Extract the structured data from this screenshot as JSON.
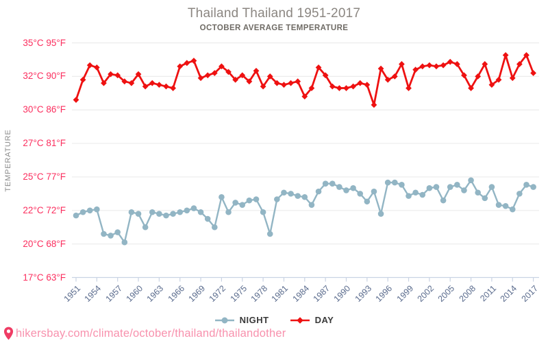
{
  "title": "Thailand Thailand 1951-2017",
  "subtitle": "OCTOBER AVERAGE TEMPERATURE",
  "y_axis_label": "TEMPERATURE",
  "legend": {
    "night_label": "NIGHT",
    "day_label": "DAY"
  },
  "footer": {
    "url": "hikersbay.com/climate/october/thailand/thailandother"
  },
  "colors": {
    "day": "#ee1111",
    "night": "#92b5c4",
    "axis_label_pink": "#fb2e5e",
    "year_label": "#5a6b8d",
    "grid": "#ececec",
    "axis_line": "#c9d3e3",
    "title": "#8b8681",
    "subtitle": "#6e6a64",
    "legend_text": "#3a3a3a",
    "url_pink": "#f891ad",
    "pin": "#ef3c64",
    "temperature_label": "#8a8a8a"
  },
  "chart_data": {
    "type": "line",
    "title": "Thailand Thailand 1951-2017",
    "subtitle": "OCTOBER AVERAGE TEMPERATURE",
    "ylabel": "TEMPERATURE",
    "xlabel": "",
    "grid": true,
    "legend_position": "bottom",
    "years_start": 1951,
    "years_end": 2017,
    "x_tick_years": [
      1951,
      1954,
      1957,
      1960,
      1963,
      1966,
      1969,
      1972,
      1975,
      1978,
      1981,
      1984,
      1987,
      1990,
      1993,
      1996,
      1999,
      2002,
      2005,
      2008,
      2011,
      2014,
      2017
    ],
    "y_ticks": [
      {
        "c": 35,
        "f": 95
      },
      {
        "c": 32,
        "f": 90
      },
      {
        "c": 30,
        "f": 86
      },
      {
        "c": 27,
        "f": 81
      },
      {
        "c": 25,
        "f": 77
      },
      {
        "c": 22,
        "f": 72
      },
      {
        "c": 20,
        "f": 68
      },
      {
        "c": 17,
        "f": 63
      }
    ],
    "y_tick_unit_c": "°C",
    "y_tick_unit_f": "°F",
    "series": [
      {
        "name": "NIGHT",
        "marker": "circle",
        "color": "#92b5c4",
        "values": [
          21.7,
          21.9,
          22.0,
          22.1,
          20.6,
          20.5,
          20.7,
          20.1,
          21.9,
          21.8,
          21.0,
          21.9,
          21.8,
          21.7,
          21.8,
          21.9,
          22.0,
          22.2,
          21.9,
          21.5,
          21.0,
          23.2,
          21.9,
          22.7,
          22.5,
          22.9,
          23.0,
          21.9,
          20.6,
          23.0,
          23.6,
          23.5,
          23.3,
          23.2,
          22.5,
          23.7,
          24.4,
          24.4,
          24.1,
          23.8,
          24.0,
          23.5,
          22.8,
          23.7,
          21.8,
          24.5,
          24.5,
          24.3,
          23.3,
          23.6,
          23.4,
          24.0,
          24.1,
          22.9,
          24.1,
          24.3,
          23.8,
          24.7,
          23.6,
          23.1,
          24.1,
          22.5,
          22.4,
          22.1,
          23.5,
          24.3,
          24.1
        ]
      },
      {
        "name": "DAY",
        "marker": "diamond",
        "color": "#ee1111",
        "values": [
          30.6,
          31.8,
          33.0,
          32.8,
          31.6,
          32.2,
          32.1,
          31.7,
          31.6,
          32.2,
          31.4,
          31.6,
          31.5,
          31.4,
          31.3,
          32.9,
          33.2,
          33.4,
          31.9,
          32.1,
          32.3,
          32.9,
          32.4,
          31.8,
          32.1,
          31.7,
          32.5,
          31.4,
          32.0,
          31.6,
          31.5,
          31.6,
          31.7,
          30.8,
          31.3,
          32.8,
          32.1,
          31.4,
          31.3,
          31.3,
          31.4,
          31.6,
          31.5,
          30.3,
          32.7,
          31.8,
          32.0,
          33.1,
          31.3,
          32.6,
          32.9,
          33.0,
          32.9,
          33.0,
          33.3,
          33.1,
          32.1,
          31.3,
          32.0,
          33.1,
          31.5,
          31.8,
          33.9,
          31.9,
          33.1,
          33.9,
          32.3
        ]
      }
    ]
  }
}
